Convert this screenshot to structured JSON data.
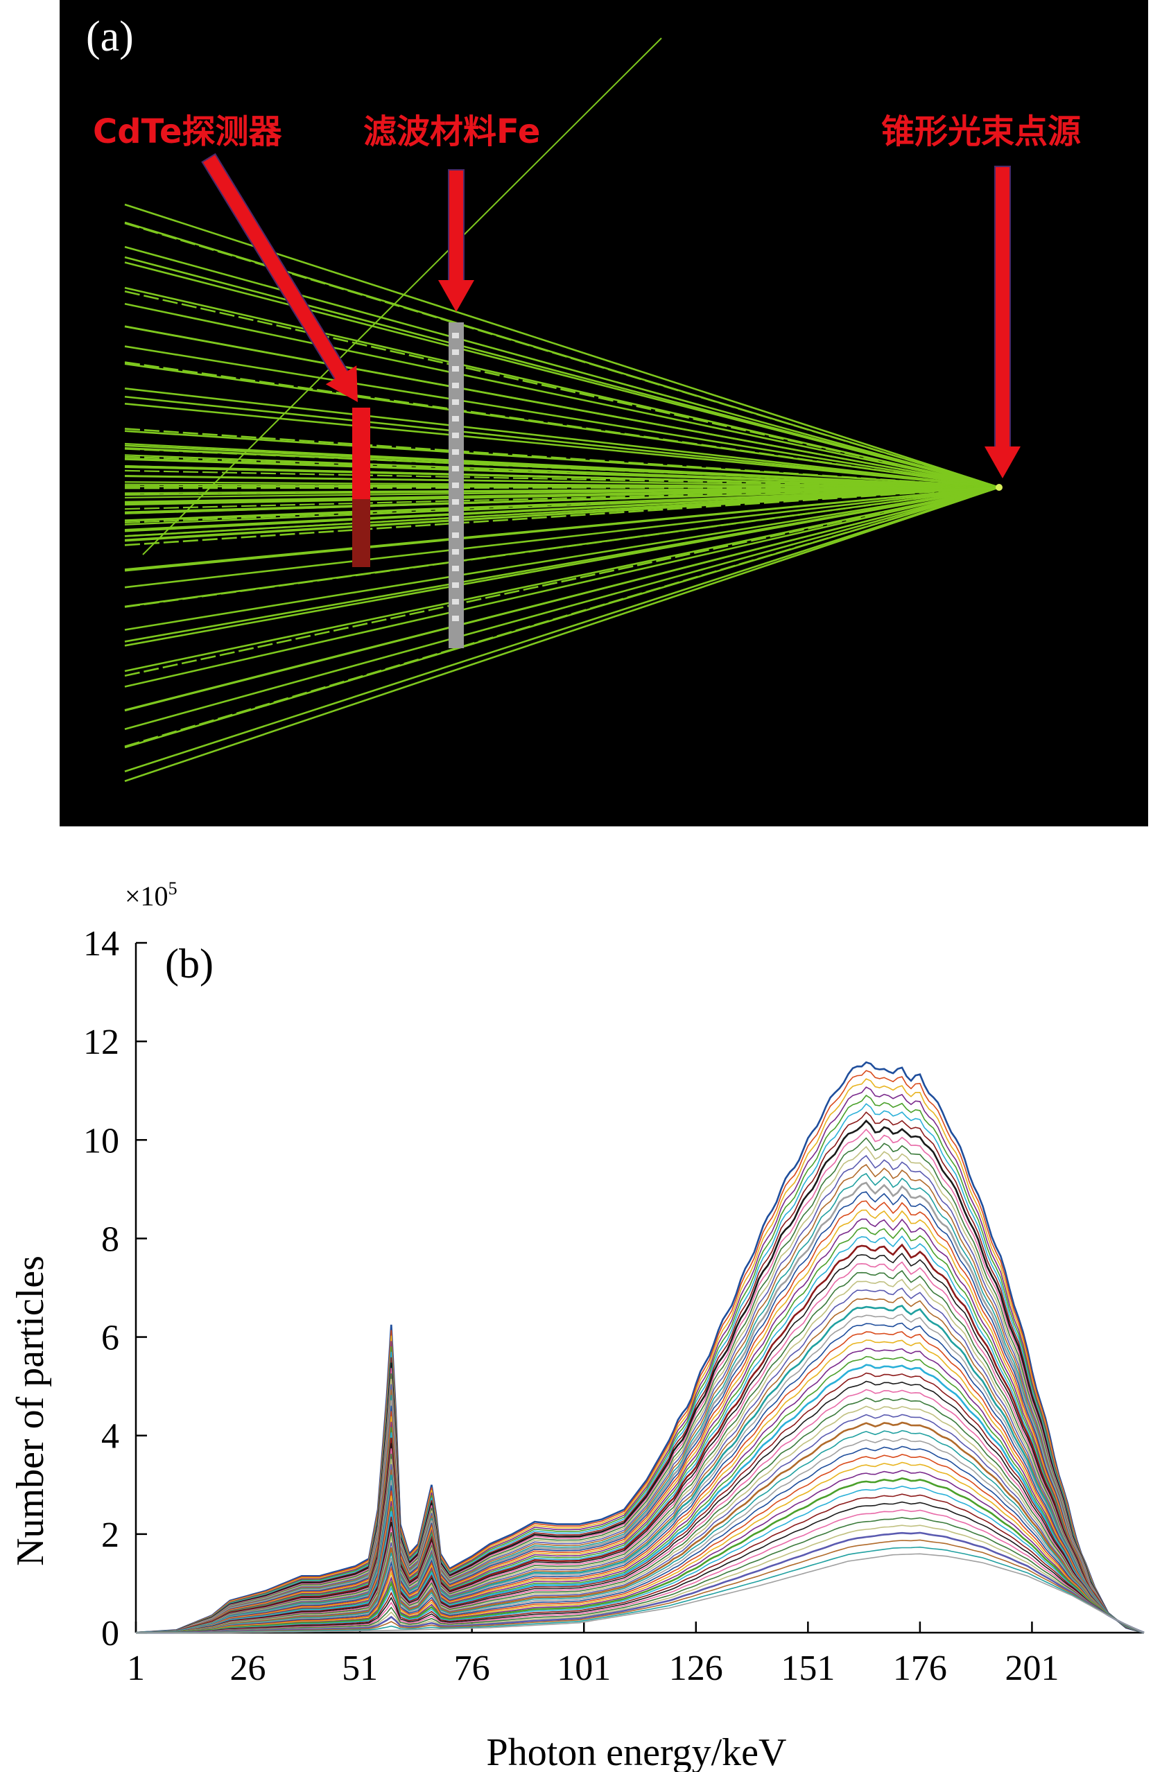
{
  "panel_a": {
    "panel_label": "(a)",
    "labels": {
      "detector": "CdTe探测器",
      "filter": "滤波材料Fe",
      "source": "锥形光束点源"
    },
    "colors": {
      "background": "#000000",
      "rays": "#7ec81e",
      "arrows": "#e8131b",
      "detector": "#e8131b",
      "filter": "#9a9a9a"
    }
  },
  "chart_data": {
    "type": "line",
    "panel_label": "(b)",
    "title": "",
    "xlabel": "Photon energy/keV",
    "ylabel": "Number of particles",
    "y_multiplier": "×10",
    "y_multiplier_exp": "5",
    "xlim": [
      1,
      226
    ],
    "ylim": [
      0,
      14
    ],
    "xticks": [
      1,
      26,
      51,
      76,
      101,
      126,
      151,
      176,
      201
    ],
    "yticks": [
      0,
      2,
      4,
      6,
      8,
      10,
      12,
      14
    ],
    "grid": false,
    "legend": "none",
    "series_count": 60,
    "envelope": {
      "description_units": "x in keV, y in ×10^5 particles",
      "upper": {
        "x": [
          1,
          10,
          18,
          22,
          26,
          30,
          34,
          38,
          42,
          46,
          50,
          53,
          55,
          57,
          58,
          59,
          60,
          62,
          64,
          66,
          67,
          68,
          69,
          71,
          73,
          76,
          80,
          85,
          90,
          95,
          100,
          105,
          110,
          115,
          120,
          125,
          130,
          135,
          140,
          145,
          150,
          154,
          158,
          162,
          164,
          166,
          168,
          170,
          172,
          174,
          176,
          178,
          182,
          186,
          190,
          194,
          198,
          202,
          206,
          210,
          214,
          218,
          222,
          226
        ],
        "y": [
          0,
          0.05,
          0.35,
          0.65,
          0.75,
          0.85,
          1.0,
          1.15,
          1.15,
          1.25,
          1.35,
          1.5,
          2.5,
          4.8,
          6.25,
          4.5,
          2.2,
          1.6,
          1.8,
          2.6,
          3.0,
          2.4,
          1.6,
          1.3,
          1.4,
          1.55,
          1.8,
          2.0,
          2.25,
          2.2,
          2.2,
          2.3,
          2.5,
          3.1,
          3.9,
          4.8,
          5.9,
          6.9,
          8.0,
          9.0,
          9.8,
          10.5,
          11.1,
          11.5,
          11.6,
          11.4,
          11.5,
          11.3,
          11.5,
          11.2,
          11.3,
          11.0,
          10.4,
          9.6,
          8.6,
          7.6,
          6.4,
          5.0,
          3.6,
          2.2,
          1.1,
          0.4,
          0.1,
          0
        ]
      },
      "lower": {
        "x": [
          1,
          20,
          40,
          60,
          80,
          100,
          120,
          140,
          150,
          160,
          170,
          176,
          182,
          190,
          200,
          210,
          216,
          220,
          224,
          226
        ],
        "y": [
          0,
          0,
          0.02,
          0.05,
          0.1,
          0.2,
          0.5,
          0.95,
          1.2,
          1.45,
          1.58,
          1.6,
          1.55,
          1.42,
          1.15,
          0.75,
          0.45,
          0.25,
          0.08,
          0
        ]
      }
    }
  }
}
